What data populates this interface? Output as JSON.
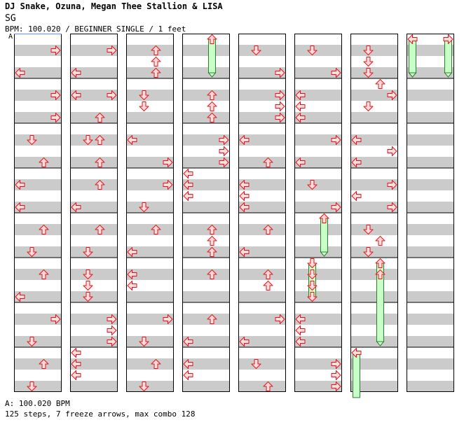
{
  "header": {
    "artist": "DJ Snake, Ozuna, Megan Thee Stallion & LISA",
    "title": "SG",
    "bpm_label": "BPM:",
    "bpm_value": "100.020",
    "difficulty": "BEGINNER SINGLE",
    "feet": "1 feet",
    "bpm_marker": "A"
  },
  "footer": {
    "bpm_legend": "A: 100.020 BPM",
    "stats": "125 steps, 7 freeze arrows, max combo 128"
  },
  "colors": {
    "arrow_fill": "#ffdada",
    "arrow_stroke": "#e2141a",
    "freeze_fill": "#c8ffc8",
    "freeze_stroke": "#2a7f2a",
    "band": "#cbcbcb"
  },
  "chart_data": {
    "type": "table",
    "lanes": [
      "left",
      "down",
      "up",
      "right"
    ],
    "measures_per_column": 8,
    "columns": 8,
    "rows_per_measure": 4,
    "total_measures": 64,
    "notes": [
      {
        "m": 0,
        "r": 1,
        "l": 3
      },
      {
        "m": 0,
        "r": 3,
        "l": 0
      },
      {
        "m": 1,
        "r": 1,
        "l": 3
      },
      {
        "m": 1,
        "r": 3,
        "l": 3
      },
      {
        "m": 2,
        "r": 1,
        "l": 1
      },
      {
        "m": 2,
        "r": 3,
        "l": 2
      },
      {
        "m": 3,
        "r": 1,
        "l": 0
      },
      {
        "m": 3,
        "r": 3,
        "l": 0
      },
      {
        "m": 4,
        "r": 1,
        "l": 2
      },
      {
        "m": 4,
        "r": 3,
        "l": 1
      },
      {
        "m": 5,
        "r": 1,
        "l": 2
      },
      {
        "m": 5,
        "r": 3,
        "l": 0
      },
      {
        "m": 6,
        "r": 1,
        "l": 3
      },
      {
        "m": 6,
        "r": 3,
        "l": 1
      },
      {
        "m": 7,
        "r": 1,
        "l": 2
      },
      {
        "m": 7,
        "r": 3,
        "l": 1
      },
      {
        "m": 8,
        "r": 1,
        "l": 3
      },
      {
        "m": 8,
        "r": 3,
        "l": 0
      },
      {
        "m": 9,
        "r": 1,
        "l": 0
      },
      {
        "m": 9,
        "r": 1,
        "l": 3
      },
      {
        "m": 9,
        "r": 3,
        "l": 2
      },
      {
        "m": 10,
        "r": 1,
        "l": 1
      },
      {
        "m": 10,
        "r": 1,
        "l": 2
      },
      {
        "m": 10,
        "r": 3,
        "l": 2
      },
      {
        "m": 11,
        "r": 1,
        "l": 2
      },
      {
        "m": 11,
        "r": 3,
        "l": 0
      },
      {
        "m": 12,
        "r": 1,
        "l": 2
      },
      {
        "m": 12,
        "r": 3,
        "l": 1
      },
      {
        "m": 13,
        "r": 1,
        "l": 1
      },
      {
        "m": 13,
        "r": 2,
        "l": 1
      },
      {
        "m": 13,
        "r": 3,
        "l": 1
      },
      {
        "m": 14,
        "r": 1,
        "l": 3
      },
      {
        "m": 14,
        "r": 2,
        "l": 3
      },
      {
        "m": 14,
        "r": 3,
        "l": 3
      },
      {
        "m": 15,
        "r": 0,
        "l": 0
      },
      {
        "m": 15,
        "r": 1,
        "l": 0
      },
      {
        "m": 15,
        "r": 2,
        "l": 0
      },
      {
        "m": 16,
        "r": 1,
        "l": 2
      },
      {
        "m": 16,
        "r": 2,
        "l": 2
      },
      {
        "m": 16,
        "r": 3,
        "l": 2
      },
      {
        "m": 17,
        "r": 1,
        "l": 1
      },
      {
        "m": 17,
        "r": 2,
        "l": 1
      },
      {
        "m": 18,
        "r": 1,
        "l": 0
      },
      {
        "m": 18,
        "r": 3,
        "l": 3
      },
      {
        "m": 19,
        "r": 1,
        "l": 3
      },
      {
        "m": 19,
        "r": 3,
        "l": 1
      },
      {
        "m": 20,
        "r": 1,
        "l": 2
      },
      {
        "m": 20,
        "r": 3,
        "l": 0
      },
      {
        "m": 21,
        "r": 1,
        "l": 0
      },
      {
        "m": 21,
        "r": 2,
        "l": 0
      },
      {
        "m": 22,
        "r": 1,
        "l": 3
      },
      {
        "m": 22,
        "r": 3,
        "l": 1
      },
      {
        "m": 23,
        "r": 1,
        "l": 2
      },
      {
        "m": 23,
        "r": 3,
        "l": 1
      },
      {
        "m": 25,
        "r": 1,
        "l": 2
      },
      {
        "m": 25,
        "r": 2,
        "l": 2
      },
      {
        "m": 25,
        "r": 3,
        "l": 2
      },
      {
        "m": 26,
        "r": 1,
        "l": 3
      },
      {
        "m": 26,
        "r": 2,
        "l": 3
      },
      {
        "m": 26,
        "r": 3,
        "l": 3
      },
      {
        "m": 27,
        "r": 0,
        "l": 0
      },
      {
        "m": 27,
        "r": 1,
        "l": 0
      },
      {
        "m": 27,
        "r": 2,
        "l": 0
      },
      {
        "m": 28,
        "r": 1,
        "l": 2
      },
      {
        "m": 28,
        "r": 2,
        "l": 2
      },
      {
        "m": 28,
        "r": 3,
        "l": 2
      },
      {
        "m": 29,
        "r": 1,
        "l": 2
      },
      {
        "m": 30,
        "r": 1,
        "l": 2
      },
      {
        "m": 30,
        "r": 3,
        "l": 0
      },
      {
        "m": 31,
        "r": 1,
        "l": 0
      },
      {
        "m": 31,
        "r": 2,
        "l": 0
      },
      {
        "m": 32,
        "r": 1,
        "l": 1
      },
      {
        "m": 32,
        "r": 3,
        "l": 3
      },
      {
        "m": 33,
        "r": 1,
        "l": 3
      },
      {
        "m": 33,
        "r": 2,
        "l": 3
      },
      {
        "m": 33,
        "r": 3,
        "l": 3
      },
      {
        "m": 34,
        "r": 1,
        "l": 0
      },
      {
        "m": 34,
        "r": 3,
        "l": 2
      },
      {
        "m": 35,
        "r": 1,
        "l": 0
      },
      {
        "m": 35,
        "r": 2,
        "l": 0
      },
      {
        "m": 35,
        "r": 3,
        "l": 0
      },
      {
        "m": 36,
        "r": 1,
        "l": 2
      },
      {
        "m": 36,
        "r": 3,
        "l": 0
      },
      {
        "m": 37,
        "r": 1,
        "l": 2
      },
      {
        "m": 37,
        "r": 2,
        "l": 2
      },
      {
        "m": 38,
        "r": 1,
        "l": 3
      },
      {
        "m": 38,
        "r": 3,
        "l": 0
      },
      {
        "m": 39,
        "r": 1,
        "l": 1
      },
      {
        "m": 39,
        "r": 3,
        "l": 2
      },
      {
        "m": 40,
        "r": 1,
        "l": 1
      },
      {
        "m": 40,
        "r": 3,
        "l": 3
      },
      {
        "m": 41,
        "r": 1,
        "l": 0
      },
      {
        "m": 41,
        "r": 2,
        "l": 0
      },
      {
        "m": 41,
        "r": 3,
        "l": 0
      },
      {
        "m": 42,
        "r": 1,
        "l": 3
      },
      {
        "m": 42,
        "r": 3,
        "l": 0
      },
      {
        "m": 43,
        "r": 1,
        "l": 1
      },
      {
        "m": 43,
        "r": 3,
        "l": 3
      },
      {
        "m": 44,
        "r": 0,
        "l": 2
      },
      {
        "m": 45,
        "r": 1,
        "l": 1
      },
      {
        "m": 45,
        "r": 2,
        "l": 1
      },
      {
        "m": 45,
        "r": 3,
        "l": 1
      },
      {
        "m": 46,
        "r": 1,
        "l": 0
      },
      {
        "m": 46,
        "r": 2,
        "l": 0
      },
      {
        "m": 46,
        "r": 3,
        "l": 0
      },
      {
        "m": 47,
        "r": 1,
        "l": 3
      },
      {
        "m": 47,
        "r": 2,
        "l": 3
      },
      {
        "m": 47,
        "r": 3,
        "l": 3
      },
      {
        "m": 48,
        "r": 1,
        "l": 1
      },
      {
        "m": 48,
        "r": 2,
        "l": 1
      },
      {
        "m": 48,
        "r": 3,
        "l": 1
      },
      {
        "m": 49,
        "r": 0,
        "l": 2
      },
      {
        "m": 49,
        "r": 1,
        "l": 3
      },
      {
        "m": 49,
        "r": 2,
        "l": 1
      },
      {
        "m": 50,
        "r": 1,
        "l": 0
      },
      {
        "m": 50,
        "r": 2,
        "l": 3
      },
      {
        "m": 50,
        "r": 3,
        "l": 0
      },
      {
        "m": 51,
        "r": 1,
        "l": 3
      },
      {
        "m": 51,
        "r": 2,
        "l": 0
      },
      {
        "m": 51,
        "r": 3,
        "l": 3
      },
      {
        "m": 52,
        "r": 1,
        "l": 1
      },
      {
        "m": 52,
        "r": 2,
        "l": 2
      },
      {
        "m": 52,
        "r": 3,
        "l": 1
      },
      {
        "m": 53,
        "r": 1,
        "l": 2
      }
    ],
    "freezes": [
      {
        "lane": 2,
        "start": 24.0,
        "end": 24.75
      },
      {
        "lane": 2,
        "start": 44.0,
        "end": 44.75
      },
      {
        "lane": 1,
        "start": 45.0,
        "end": 45.75
      },
      {
        "lane": 2,
        "start": 53.0,
        "end": 54.75
      },
      {
        "lane": 0,
        "start": 55.0,
        "end": 56.75
      },
      {
        "lane": 0,
        "start": 56.0,
        "end": 56.75
      },
      {
        "lane": 3,
        "start": 56.0,
        "end": 56.75
      }
    ]
  }
}
